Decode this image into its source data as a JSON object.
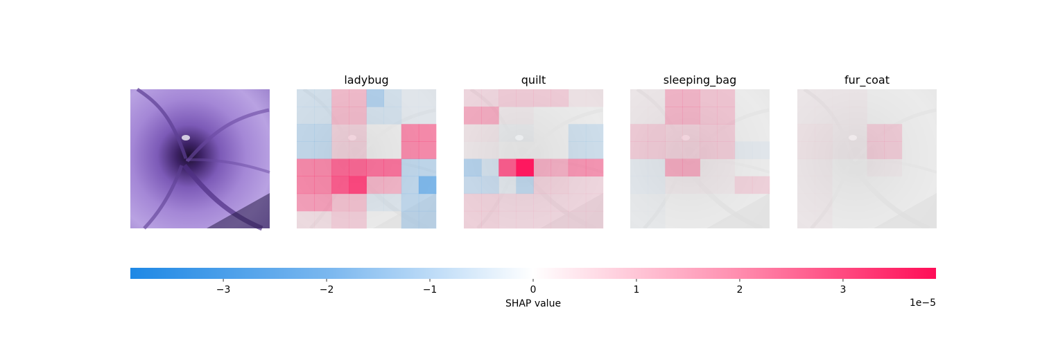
{
  "chart_data": {
    "type": "heatmap",
    "panel_titles": [
      "",
      "ladybug",
      "quilt",
      "sleeping_bag",
      "fur_coat"
    ],
    "grid": {
      "rows": 8,
      "cols": 8
    },
    "value_scale": 1e-05,
    "value_range": [
      -3.9,
      3.9
    ],
    "panels": [
      {
        "name": "ladybug",
        "shap_values": [
          [
            -0.5,
            -0.5,
            0.9,
            0.9,
            -1.2,
            -0.5,
            -0.2,
            -0.2
          ],
          [
            -0.5,
            -0.5,
            0.9,
            0.9,
            -0.5,
            -0.5,
            -0.2,
            -0.2
          ],
          [
            -0.8,
            -0.8,
            0.5,
            0.5,
            0.0,
            0.0,
            1.8,
            1.8
          ],
          [
            -0.8,
            -0.8,
            0.5,
            0.5,
            0.0,
            0.0,
            1.8,
            1.8
          ],
          [
            1.8,
            1.8,
            2.4,
            2.4,
            2.2,
            2.2,
            -0.9,
            -0.9
          ],
          [
            1.8,
            1.8,
            2.6,
            3.0,
            1.0,
            1.0,
            -0.9,
            -2.2
          ],
          [
            1.4,
            1.4,
            0.8,
            0.8,
            -0.3,
            -0.3,
            -0.9,
            -0.9
          ],
          [
            0.3,
            0.3,
            0.6,
            0.6,
            0.0,
            0.0,
            -0.9,
            -0.9
          ]
        ]
      },
      {
        "name": "quilt",
        "shap_values": [
          [
            0.4,
            0.4,
            0.6,
            0.6,
            0.6,
            0.6,
            0.2,
            0.2
          ],
          [
            1.2,
            1.2,
            0.1,
            0.1,
            0.0,
            0.0,
            0.0,
            0.0
          ],
          [
            0.2,
            0.2,
            -0.1,
            -0.1,
            0.0,
            0.0,
            -0.6,
            -0.6
          ],
          [
            0.1,
            0.1,
            0.0,
            0.0,
            0.0,
            0.0,
            -0.6,
            -0.6
          ],
          [
            -1.1,
            -0.5,
            2.6,
            3.9,
            1.1,
            1.1,
            1.6,
            1.6
          ],
          [
            -0.7,
            -0.7,
            -0.2,
            -0.9,
            0.5,
            0.5,
            0.4,
            0.4
          ],
          [
            0.5,
            0.5,
            0.4,
            0.4,
            0.4,
            0.4,
            0.4,
            0.4
          ],
          [
            0.5,
            0.5,
            0.4,
            0.4,
            0.4,
            0.4,
            0.4,
            0.4
          ]
        ]
      },
      {
        "name": "sleeping_bag",
        "shap_values": [
          [
            0.1,
            0.1,
            1.0,
            1.0,
            0.7,
            0.7,
            0.0,
            0.0
          ],
          [
            0.1,
            0.1,
            1.0,
            1.0,
            0.7,
            0.7,
            0.0,
            0.0
          ],
          [
            0.6,
            0.6,
            0.5,
            0.5,
            0.6,
            0.6,
            0.0,
            0.0
          ],
          [
            0.6,
            0.6,
            0.5,
            0.5,
            0.6,
            0.6,
            -0.2,
            -0.2
          ],
          [
            -0.2,
            -0.2,
            1.2,
            1.2,
            0.1,
            0.1,
            0.0,
            0.0
          ],
          [
            -0.2,
            -0.2,
            0.1,
            0.1,
            0.1,
            0.1,
            0.5,
            0.5
          ],
          [
            -0.1,
            -0.1,
            0.0,
            0.0,
            0.0,
            0.0,
            0.0,
            0.0
          ],
          [
            -0.1,
            -0.1,
            0.0,
            0.0,
            0.0,
            0.0,
            0.0,
            0.0
          ]
        ]
      },
      {
        "name": "fur_coat",
        "shap_values": [
          [
            0.1,
            0.1,
            0.1,
            0.1,
            0.0,
            0.0,
            0.0,
            0.0
          ],
          [
            0.1,
            0.1,
            0.1,
            0.1,
            0.0,
            0.0,
            0.0,
            0.0
          ],
          [
            0.2,
            0.2,
            0.1,
            0.1,
            0.6,
            0.6,
            0.0,
            0.0
          ],
          [
            0.2,
            0.2,
            0.1,
            0.1,
            0.6,
            0.6,
            0.0,
            0.0
          ],
          [
            0.1,
            0.1,
            0.0,
            0.0,
            0.1,
            0.1,
            0.0,
            0.0
          ],
          [
            0.1,
            0.1,
            0.0,
            0.0,
            0.0,
            0.0,
            0.0,
            0.0
          ],
          [
            0.1,
            0.1,
            0.0,
            0.0,
            0.0,
            0.0,
            0.0,
            0.0
          ],
          [
            0.1,
            0.1,
            0.0,
            0.0,
            0.0,
            0.0,
            0.0,
            0.0
          ]
        ]
      }
    ],
    "colorbar": {
      "label": "SHAP value",
      "ticks": [
        -3,
        -2,
        -1,
        0,
        1,
        2,
        3
      ],
      "tick_labels": [
        "−3",
        "−2",
        "−1",
        "0",
        "1",
        "2",
        "3"
      ],
      "offset_text": "1e−5",
      "negative_color": "#1e88e5",
      "positive_color": "#ff0d57"
    }
  }
}
